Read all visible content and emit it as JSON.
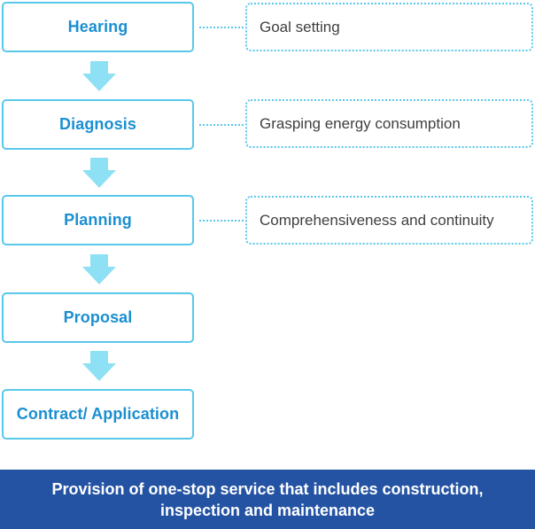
{
  "steps": [
    {
      "label": "Hearing"
    },
    {
      "label": "Diagnosis"
    },
    {
      "label": "Planning"
    },
    {
      "label": "Proposal"
    },
    {
      "label": "Contract/ Application"
    }
  ],
  "notes": [
    {
      "label": "Goal setting"
    },
    {
      "label": "Grasping energy consumption"
    },
    {
      "label": "Comprehensiveness and continuity"
    }
  ],
  "footer": {
    "line1": "Provision of one-stop service that includes construction,",
    "line2": "inspection and maintenance"
  },
  "colors": {
    "accent": "#5ac8ea",
    "step_text": "#1a8fd1",
    "footer_bg": "#2453a3",
    "arrow": "#8ee0f4"
  }
}
